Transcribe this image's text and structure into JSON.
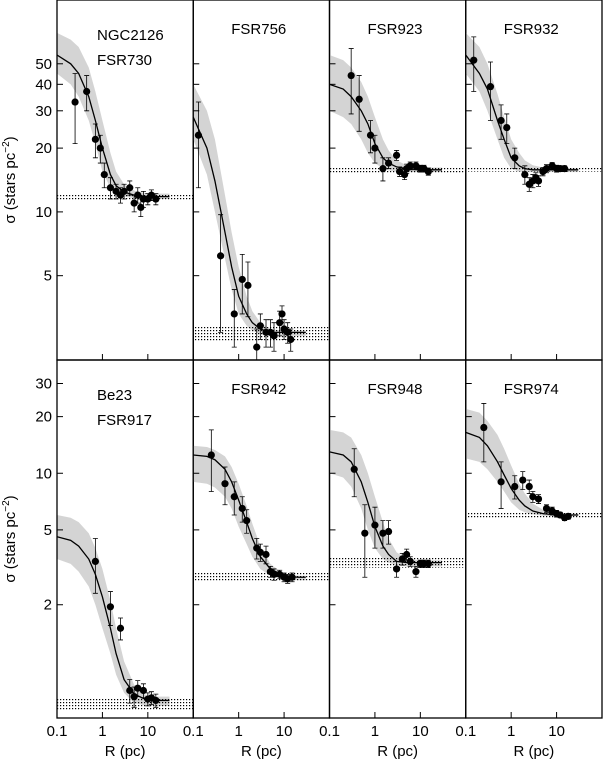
{
  "chart_data": [
    {
      "type": "profile",
      "title": [
        "NGC2126",
        "FSR730"
      ],
      "log_x": true,
      "log_y": true,
      "xlim": [
        0.1,
        100
      ],
      "ylim": [
        2,
        100
      ],
      "xticks": [
        0.1,
        1,
        10
      ],
      "yticks": [
        5,
        10,
        20,
        30,
        40,
        50
      ],
      "ylabel": "σ (stars pc",
      "ylabel_sup": "−2",
      "ylabel_end": ")",
      "x": [
        0.25,
        0.45,
        0.7,
        0.9,
        1.1,
        1.5,
        2,
        2.5,
        3,
        4,
        5,
        6,
        7,
        8,
        10,
        12,
        15
      ],
      "values": [
        33,
        37,
        22,
        20,
        15,
        13,
        12.5,
        12,
        12.5,
        13,
        11,
        12,
        10.5,
        11.5,
        11.5,
        12,
        11.5
      ],
      "errors": [
        12,
        7,
        4,
        3,
        2,
        1.5,
        1,
        1,
        1,
        1,
        1,
        1,
        1,
        1,
        0.7,
        0.7,
        0.7
      ],
      "background": [
        11.3,
        12.2
      ],
      "fit": {
        "x": [
          0.1,
          0.2,
          0.3,
          0.5,
          0.7,
          1,
          1.5,
          2,
          3,
          5,
          10,
          20,
          30
        ],
        "values": [
          55,
          50,
          45,
          35,
          27,
          20,
          15,
          13.3,
          12.4,
          12,
          11.8,
          11.8,
          11.8
        ],
        "upper": [
          70,
          65,
          60,
          48,
          37,
          27,
          19,
          15.5,
          13.5,
          12.6,
          12.2,
          12.2,
          12.2
        ],
        "lower": [
          45,
          40,
          35,
          27,
          21,
          15.5,
          13,
          12.2,
          11.8,
          11.6,
          11.5,
          11.5,
          11.5
        ]
      }
    },
    {
      "type": "profile",
      "title": [
        "FSR756"
      ],
      "log_x": true,
      "log_y": true,
      "xlim": [
        0.1,
        100
      ],
      "ylim": [
        2,
        100
      ],
      "xticks": [
        0.1,
        1,
        10
      ],
      "yticks": [
        5,
        10,
        20,
        30,
        40,
        50
      ],
      "x": [
        0.13,
        0.4,
        0.8,
        1.2,
        1.6,
        2.5,
        3,
        4,
        5,
        6,
        8,
        9,
        10,
        12,
        14
      ],
      "values": [
        23,
        6.2,
        3.3,
        4.8,
        4.5,
        2.3,
        2.9,
        2.7,
        2.7,
        2.6,
        3,
        3.3,
        2.8,
        2.7,
        2.5
      ],
      "errors": [
        10,
        3.5,
        1,
        1.5,
        1.3,
        0.5,
        0.4,
        0.4,
        0.4,
        0.4,
        0.4,
        0.3,
        0.3,
        0.3,
        0.3
      ],
      "background": [
        2.45,
        2.9
      ],
      "fit": {
        "x": [
          0.1,
          0.2,
          0.3,
          0.5,
          0.7,
          1,
          1.5,
          2,
          3,
          5,
          10,
          20,
          30
        ],
        "values": [
          28,
          20,
          14,
          8,
          5.5,
          4,
          3.3,
          3,
          2.8,
          2.7,
          2.7,
          2.7,
          2.7
        ],
        "upper": [
          40,
          30,
          22,
          12,
          8,
          5.5,
          4,
          3.4,
          3,
          2.8,
          2.75,
          2.75,
          2.75
        ],
        "lower": [
          22,
          15,
          10,
          6,
          4.3,
          3.3,
          2.9,
          2.75,
          2.65,
          2.6,
          2.6,
          2.6,
          2.6
        ]
      }
    },
    {
      "type": "profile",
      "title": [
        "FSR923"
      ],
      "log_x": true,
      "log_y": true,
      "xlim": [
        0.1,
        100
      ],
      "ylim": [
        2,
        100
      ],
      "xticks": [
        0.1,
        1,
        10
      ],
      "yticks": [
        5,
        10,
        20,
        30,
        40,
        50
      ],
      "x": [
        0.3,
        0.45,
        0.8,
        1,
        1.5,
        2,
        3,
        3.5,
        4.5,
        5,
        6,
        8,
        10,
        12,
        15
      ],
      "values": [
        44,
        34,
        23,
        20,
        16,
        17,
        18.5,
        15.5,
        15,
        16,
        16.5,
        16.5,
        16,
        16,
        15.5
      ],
      "errors": [
        15,
        10,
        4,
        3,
        2,
        1,
        1,
        0.8,
        0.8,
        0.8,
        0.7,
        0.7,
        0.6,
        0.6,
        0.6
      ],
      "background": [
        15.2,
        16.3
      ],
      "fit": {
        "x": [
          0.1,
          0.2,
          0.3,
          0.5,
          0.7,
          1,
          1.5,
          2,
          3,
          5,
          10,
          20,
          30
        ],
        "values": [
          40,
          38,
          35,
          30,
          26,
          21,
          18,
          17,
          16.3,
          16,
          15.8,
          15.8,
          15.8
        ],
        "upper": [
          55,
          52,
          48,
          41,
          35,
          28,
          22,
          19.5,
          17.5,
          16.6,
          16.2,
          16.2,
          16.2
        ],
        "lower": [
          30,
          28,
          26,
          22,
          19,
          17,
          16,
          15.7,
          15.5,
          15.4,
          15.4,
          15.4,
          15.4
        ]
      }
    },
    {
      "type": "profile",
      "title": [
        "FSR932"
      ],
      "log_x": true,
      "log_y": true,
      "xlim": [
        0.1,
        100
      ],
      "ylim": [
        2,
        100
      ],
      "xticks": [
        0.1,
        1,
        10
      ],
      "yticks": [
        5,
        10,
        20,
        30,
        40,
        50
      ],
      "x": [
        0.15,
        0.35,
        0.6,
        0.8,
        1.2,
        2,
        2.5,
        3,
        3.5,
        4,
        5,
        6,
        8,
        10,
        12,
        15
      ],
      "values": [
        52,
        39,
        27,
        25,
        18,
        15,
        13.5,
        14,
        14.5,
        14,
        15.5,
        16,
        16.5,
        16,
        16,
        16
      ],
      "errors": [
        15,
        12,
        5,
        4,
        2,
        1.5,
        1,
        1,
        0.8,
        0.8,
        0.7,
        0.7,
        0.6,
        0.6,
        0.5,
        0.5
      ],
      "background": [
        15.5,
        16.3
      ],
      "fit": {
        "x": [
          0.1,
          0.2,
          0.3,
          0.5,
          0.7,
          1,
          1.5,
          2,
          3,
          5,
          10,
          20,
          30
        ],
        "values": [
          55,
          45,
          38,
          27,
          22,
          18,
          16.5,
          16,
          15.8,
          15.8,
          15.8,
          15.8,
          15.8
        ],
        "upper": [
          70,
          60,
          50,
          36,
          28,
          22,
          19,
          17.5,
          16.6,
          16.2,
          16.1,
          16.1,
          16.1
        ],
        "lower": [
          45,
          37,
          30,
          22,
          18,
          16,
          15.5,
          15.4,
          15.4,
          15.4,
          15.4,
          15.4,
          15.4
        ]
      }
    },
    {
      "type": "profile",
      "title": [
        "Be23",
        "FSR917"
      ],
      "log_x": true,
      "log_y": true,
      "xlim": [
        0.1,
        100
      ],
      "ylim": [
        0.5,
        40
      ],
      "xticks": [
        0.1,
        1,
        10
      ],
      "yticks": [
        2,
        5,
        10,
        20,
        30
      ],
      "ylabel": "σ (stars pc",
      "ylabel_sup": "−2",
      "ylabel_end": ")",
      "xlabel": "R (pc)",
      "x": [
        0.7,
        1.5,
        2.5,
        4,
        5,
        6,
        8,
        10,
        12,
        15
      ],
      "values": [
        3.4,
        1.95,
        1.5,
        0.7,
        0.65,
        0.72,
        0.7,
        0.63,
        0.64,
        0.62
      ],
      "errors": [
        1.1,
        0.4,
        0.2,
        0.1,
        0.08,
        0.07,
        0.06,
        0.05,
        0.05,
        0.05
      ],
      "background": [
        0.55,
        0.64
      ],
      "fit": {
        "x": [
          0.1,
          0.2,
          0.3,
          0.5,
          0.7,
          1,
          1.5,
          2,
          3,
          5,
          10,
          20,
          30
        ],
        "values": [
          4.6,
          4.4,
          4.1,
          3.5,
          2.9,
          2.2,
          1.5,
          1.1,
          0.8,
          0.67,
          0.62,
          0.62,
          0.62
        ],
        "upper": [
          6,
          5.8,
          5.5,
          4.8,
          4,
          3.1,
          2.1,
          1.5,
          1,
          0.75,
          0.65,
          0.65,
          0.65
        ],
        "lower": [
          3.5,
          3.3,
          3,
          2.5,
          2,
          1.5,
          1.1,
          0.85,
          0.68,
          0.6,
          0.58,
          0.58,
          0.58
        ]
      }
    },
    {
      "type": "profile",
      "title": [
        "FSR942"
      ],
      "log_x": true,
      "log_y": true,
      "xlim": [
        0.1,
        100
      ],
      "ylim": [
        0.5,
        40
      ],
      "xticks": [
        0.1,
        1,
        10
      ],
      "yticks": [
        2,
        5,
        10,
        20,
        30
      ],
      "xlabel": "R (pc)",
      "x": [
        0.25,
        0.5,
        0.8,
        1.2,
        1.5,
        2.5,
        3,
        4,
        5,
        6,
        8,
        10,
        12,
        15
      ],
      "values": [
        12.5,
        8.8,
        7.5,
        6.5,
        5.6,
        4,
        3.8,
        3.7,
        3,
        2.9,
        2.9,
        2.8,
        2.75,
        2.8
      ],
      "errors": [
        4.5,
        2,
        1.5,
        1,
        0.8,
        0.5,
        0.4,
        0.4,
        0.2,
        0.2,
        0.15,
        0.15,
        0.15,
        0.15
      ],
      "background": [
        2.65,
        2.95
      ],
      "fit": {
        "x": [
          0.1,
          0.2,
          0.3,
          0.5,
          0.7,
          1,
          1.5,
          2,
          3,
          5,
          10,
          20,
          30
        ],
        "values": [
          12.5,
          12.3,
          11.8,
          10.5,
          9,
          7.2,
          5.5,
          4.5,
          3.6,
          3.1,
          2.85,
          2.8,
          2.8
        ],
        "upper": [
          14,
          13.8,
          13.3,
          12.3,
          10.8,
          8.8,
          6.7,
          5.4,
          4.1,
          3.3,
          2.9,
          2.85,
          2.85
        ],
        "lower": [
          9,
          8.8,
          8.4,
          7.5,
          6.5,
          5.2,
          4.2,
          3.6,
          3.1,
          2.85,
          2.75,
          2.7,
          2.7
        ]
      }
    },
    {
      "type": "profile",
      "title": [
        "FSR948"
      ],
      "log_x": true,
      "log_y": true,
      "xlim": [
        0.1,
        100
      ],
      "ylim": [
        0.5,
        40
      ],
      "xticks": [
        0.1,
        1,
        10
      ],
      "yticks": [
        2,
        5,
        10,
        20,
        30
      ],
      "xlabel": "R (pc)",
      "x": [
        0.35,
        0.6,
        1,
        1.5,
        2,
        3,
        4,
        5,
        6,
        8,
        10,
        12,
        15
      ],
      "values": [
        10.5,
        4.8,
        5.3,
        4.8,
        4.9,
        3.1,
        3.5,
        3.7,
        3.4,
        3,
        3.3,
        3.3,
        3.3
      ],
      "errors": [
        3,
        2,
        1.3,
        0.8,
        0.7,
        0.3,
        0.25,
        0.25,
        0.2,
        0.2,
        0.15,
        0.15,
        0.15
      ],
      "background": [
        3.15,
        3.55
      ],
      "fit": {
        "x": [
          0.1,
          0.2,
          0.3,
          0.5,
          0.7,
          1,
          1.5,
          2,
          3,
          5,
          10,
          20,
          30
        ],
        "values": [
          13,
          12.5,
          11.5,
          9,
          7,
          5.2,
          4.1,
          3.7,
          3.4,
          3.35,
          3.35,
          3.35,
          3.35
        ],
        "upper": [
          17,
          16.5,
          15.5,
          12.5,
          10,
          7.5,
          5.5,
          4.5,
          3.8,
          3.5,
          3.45,
          3.45,
          3.45
        ],
        "lower": [
          10,
          9.5,
          8.5,
          6.5,
          5,
          4,
          3.5,
          3.35,
          3.25,
          3.2,
          3.2,
          3.2,
          3.2
        ]
      }
    },
    {
      "type": "profile",
      "title": [
        "FSR974"
      ],
      "log_x": true,
      "log_y": true,
      "xlim": [
        0.1,
        100
      ],
      "ylim": [
        0.5,
        40
      ],
      "xticks": [
        0.1,
        1,
        10
      ],
      "yticks": [
        2,
        5,
        10,
        20,
        30
      ],
      "xlabel": "R (pc)",
      "x": [
        0.25,
        0.6,
        1.2,
        1.8,
        2.5,
        3,
        4,
        6,
        8,
        10,
        12,
        15,
        18
      ],
      "values": [
        17.5,
        9,
        8.5,
        9.2,
        8.5,
        7.5,
        7.3,
        6.5,
        6.3,
        6.1,
        6,
        5.8,
        5.9
      ],
      "errors": [
        6,
        2.5,
        1.2,
        1,
        0.7,
        0.5,
        0.4,
        0.3,
        0.3,
        0.25,
        0.2,
        0.2,
        0.2
      ],
      "background": [
        5.8,
        6.2
      ],
      "fit": {
        "x": [
          0.1,
          0.2,
          0.3,
          0.5,
          0.7,
          1,
          1.5,
          2,
          3,
          5,
          10,
          20,
          30
        ],
        "values": [
          16.5,
          15.5,
          14,
          11.5,
          9.8,
          8.3,
          7.2,
          6.7,
          6.3,
          6.1,
          6,
          6,
          6
        ],
        "upper": [
          22,
          21,
          19,
          16,
          13.5,
          11,
          8.8,
          7.8,
          6.9,
          6.4,
          6.15,
          6.1,
          6.1
        ],
        "lower": [
          12,
          11.5,
          10.5,
          9,
          8,
          7,
          6.4,
          6.2,
          6.05,
          5.95,
          5.9,
          5.9,
          5.9
        ]
      }
    }
  ]
}
